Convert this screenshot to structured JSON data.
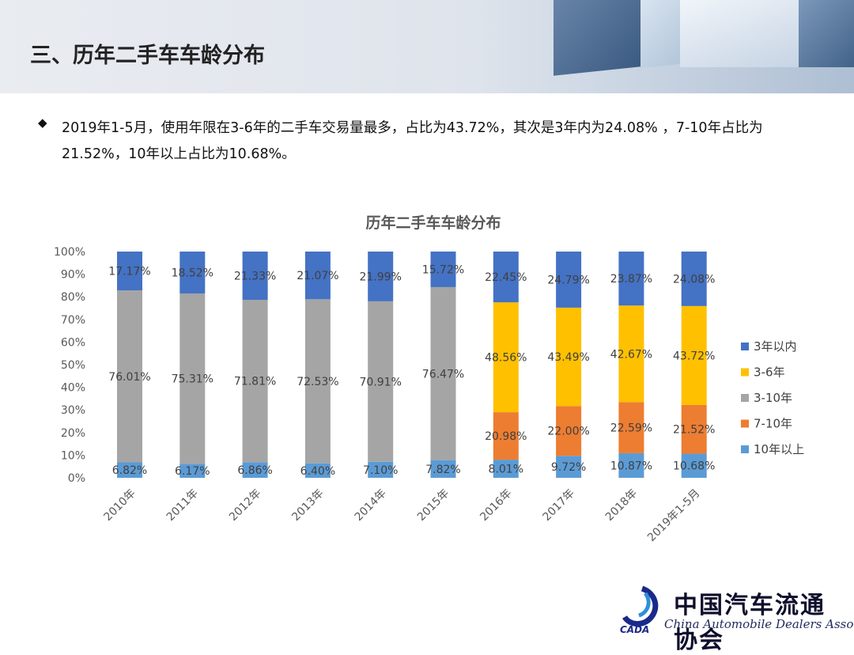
{
  "header": {
    "title": "三、历年二手车车龄分布"
  },
  "bullet": {
    "icon": "diamond-bullet-icon",
    "text": "2019年1-5月，使用年限在3-6年的二手车交易量最多，占比为43.72%，其次是3年内为24.08% ，7-10年占比为21.52%，10年以上占比为10.68%。"
  },
  "chart_data": {
    "type": "bar",
    "stacked": true,
    "title": "历年二手车车龄分布",
    "categories": [
      "2010年",
      "2011年",
      "2012年",
      "2013年",
      "2014年",
      "2015年",
      "2016年",
      "2017年",
      "2018年",
      "2019年1-5月"
    ],
    "yticks": [
      "0%",
      "10%",
      "20%",
      "30%",
      "40%",
      "50%",
      "60%",
      "70%",
      "80%",
      "90%",
      "100%"
    ],
    "ylim": [
      0,
      100
    ],
    "legend_position": "right",
    "series": [
      {
        "name": "10年以上",
        "color": "#5b9bd5",
        "values": [
          6.82,
          6.17,
          6.86,
          6.4,
          7.1,
          7.82,
          8.01,
          9.72,
          10.87,
          10.68
        ],
        "labels": [
          "6.82%",
          "6.17%",
          "6.86%",
          "6.40%",
          "7.10%",
          "7.82%",
          "8.01%",
          "9.72%",
          "10.87%",
          "10.68%"
        ]
      },
      {
        "name": "7-10年",
        "color": "#ed7d31",
        "values": [
          null,
          null,
          null,
          null,
          null,
          null,
          20.98,
          22.0,
          22.59,
          21.52
        ],
        "labels": [
          "",
          "",
          "",
          "",
          "",
          "",
          "20.98%",
          "22.00%",
          "22.59%",
          "21.52%"
        ]
      },
      {
        "name": "3-10年",
        "color": "#a5a5a5",
        "values": [
          76.01,
          75.31,
          71.81,
          72.53,
          70.91,
          76.47,
          null,
          null,
          null,
          null
        ],
        "labels": [
          "76.01%",
          "75.31%",
          "71.81%",
          "72.53%",
          "70.91%",
          "76.47%",
          "",
          "",
          "",
          ""
        ]
      },
      {
        "name": "3-6年",
        "color": "#ffc000",
        "values": [
          null,
          null,
          null,
          null,
          null,
          null,
          48.56,
          43.49,
          42.67,
          43.72
        ],
        "labels": [
          "",
          "",
          "",
          "",
          "",
          "",
          "48.56%",
          "43.49%",
          "42.67%",
          "43.72%"
        ]
      },
      {
        "name": "3年以内",
        "color": "#4472c4",
        "values": [
          17.17,
          18.52,
          21.33,
          21.07,
          21.99,
          15.72,
          22.45,
          24.79,
          23.87,
          24.08
        ],
        "labels": [
          "17.17%",
          "18.52%",
          "21.33%",
          "21.07%",
          "21.99%",
          "15.72%",
          "22.45%",
          "24.79%",
          "23.87%",
          "24.08%"
        ]
      }
    ],
    "legend": [
      "3年以内",
      "3-6年",
      "3-10年",
      "7-10年",
      "10年以上"
    ]
  },
  "logo": {
    "cn": "中国汽车流通协会",
    "en": "China Automobile Dealers Association",
    "mark_text": "CADA"
  }
}
